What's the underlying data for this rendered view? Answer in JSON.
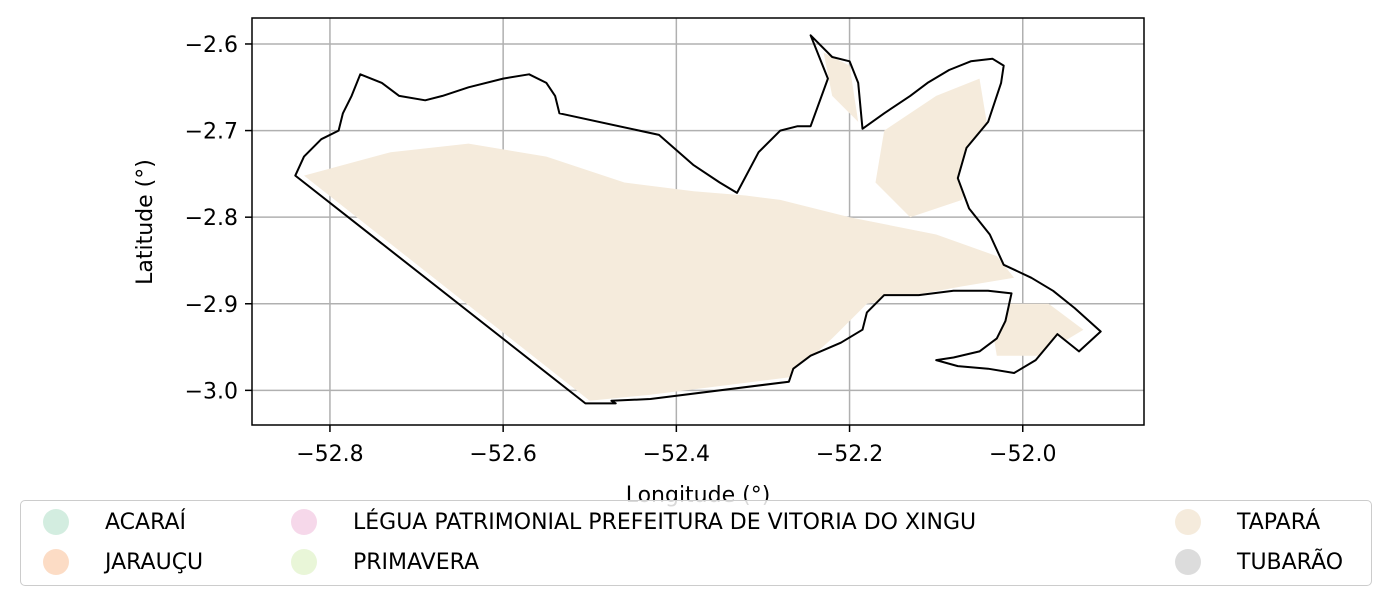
{
  "chart_data": {
    "type": "choropleth-map",
    "xlabel": "Longitude (°)",
    "ylabel": "Latitude (°)",
    "xlim": [
      -52.89,
      -51.86
    ],
    "ylim": [
      -3.04,
      -2.57
    ],
    "x_ticks": [
      -52.8,
      -52.6,
      -52.4,
      -52.2,
      -52.0
    ],
    "x_tick_labels": [
      "−52.8",
      "−52.6",
      "−52.4",
      "−52.2",
      "−52.0"
    ],
    "y_ticks": [
      -2.6,
      -2.7,
      -2.8,
      -2.9,
      -3.0
    ],
    "y_tick_labels": [
      "−2.6",
      "−2.7",
      "−2.8",
      "−2.9",
      "−3.0"
    ],
    "grid": true,
    "legend_position": "bottom",
    "colors": {
      "ACARAÍ": "#d3ede0",
      "JARAUÇU": "#fcdcc5",
      "LÉGUA PATRIMONIAL PREFEITURA DE VITORIA DO XINGU": "#f6d8ea",
      "PRIMAVERA": "#e9f6d8",
      "TAPARÁ": "#f5ebdc",
      "TUBARÃO": "#dcdcdc"
    },
    "legend": [
      {
        "label": "ACARAÍ",
        "color": "#d3ede0"
      },
      {
        "label": "JARAUÇU",
        "color": "#fcdcc5"
      },
      {
        "label": "LÉGUA PATRIMONIAL PREFEITURA DE VITORIA DO XINGU",
        "color": "#f6d8ea"
      },
      {
        "label": "PRIMAVERA",
        "color": "#e9f6d8"
      },
      {
        "label": "TAPARÁ",
        "color": "#f5ebdc"
      },
      {
        "label": "TUBARÃO",
        "color": "#dcdcdc"
      }
    ],
    "boundary": [
      [
        -52.84,
        -2.752
      ],
      [
        -52.83,
        -2.73
      ],
      [
        -52.81,
        -2.71
      ],
      [
        -52.79,
        -2.7
      ],
      [
        -52.785,
        -2.68
      ],
      [
        -52.775,
        -2.66
      ],
      [
        -52.765,
        -2.635
      ],
      [
        -52.74,
        -2.645
      ],
      [
        -52.72,
        -2.66
      ],
      [
        -52.69,
        -2.665
      ],
      [
        -52.67,
        -2.66
      ],
      [
        -52.64,
        -2.65
      ],
      [
        -52.6,
        -2.64
      ],
      [
        -52.57,
        -2.635
      ],
      [
        -52.55,
        -2.645
      ],
      [
        -52.54,
        -2.66
      ],
      [
        -52.535,
        -2.68
      ],
      [
        -52.42,
        -2.705
      ],
      [
        -52.38,
        -2.74
      ],
      [
        -52.35,
        -2.76
      ],
      [
        -52.33,
        -2.772
      ],
      [
        -52.305,
        -2.725
      ],
      [
        -52.28,
        -2.7
      ],
      [
        -52.26,
        -2.695
      ],
      [
        -52.245,
        -2.695
      ],
      [
        -52.225,
        -2.64
      ],
      [
        -52.245,
        -2.59
      ],
      [
        -52.22,
        -2.615
      ],
      [
        -52.2,
        -2.62
      ],
      [
        -52.19,
        -2.645
      ],
      [
        -52.185,
        -2.698
      ],
      [
        -52.16,
        -2.68
      ],
      [
        -52.13,
        -2.66
      ],
      [
        -52.11,
        -2.645
      ],
      [
        -52.085,
        -2.63
      ],
      [
        -52.06,
        -2.62
      ],
      [
        -52.035,
        -2.617
      ],
      [
        -52.022,
        -2.625
      ],
      [
        -52.025,
        -2.645
      ],
      [
        -52.04,
        -2.69
      ],
      [
        -52.065,
        -2.72
      ],
      [
        -52.075,
        -2.755
      ],
      [
        -52.062,
        -2.79
      ],
      [
        -52.038,
        -2.82
      ],
      [
        -52.022,
        -2.855
      ],
      [
        -51.99,
        -2.87
      ],
      [
        -51.965,
        -2.885
      ],
      [
        -51.94,
        -2.905
      ],
      [
        -51.91,
        -2.932
      ],
      [
        -51.935,
        -2.955
      ],
      [
        -51.96,
        -2.935
      ],
      [
        -51.985,
        -2.965
      ],
      [
        -52.01,
        -2.98
      ],
      [
        -52.04,
        -2.975
      ],
      [
        -52.075,
        -2.972
      ],
      [
        -52.1,
        -2.965
      ],
      [
        -52.08,
        -2.962
      ],
      [
        -52.05,
        -2.955
      ],
      [
        -52.03,
        -2.94
      ],
      [
        -52.02,
        -2.92
      ],
      [
        -52.013,
        -2.888
      ],
      [
        -52.04,
        -2.885
      ],
      [
        -52.08,
        -2.885
      ],
      [
        -52.12,
        -2.89
      ],
      [
        -52.16,
        -2.89
      ],
      [
        -52.18,
        -2.91
      ],
      [
        -52.185,
        -2.93
      ],
      [
        -52.21,
        -2.945
      ],
      [
        -52.245,
        -2.96
      ],
      [
        -52.265,
        -2.975
      ],
      [
        -52.27,
        -2.99
      ],
      [
        -52.43,
        -3.01
      ],
      [
        -52.475,
        -3.012
      ],
      [
        -52.47,
        -3.015
      ],
      [
        -52.505,
        -3.015
      ],
      [
        -52.84,
        -2.752
      ]
    ],
    "taparas_fill_region": [
      [
        -52.83,
        -2.752
      ],
      [
        -52.73,
        -2.725
      ],
      [
        -52.64,
        -2.715
      ],
      [
        -52.55,
        -2.73
      ],
      [
        -52.46,
        -2.76
      ],
      [
        -52.38,
        -2.77
      ],
      [
        -52.32,
        -2.775
      ],
      [
        -52.28,
        -2.78
      ],
      [
        -52.2,
        -2.8
      ],
      [
        -52.1,
        -2.82
      ],
      [
        -52.03,
        -2.845
      ],
      [
        -52.01,
        -2.87
      ],
      [
        -52.07,
        -2.88
      ],
      [
        -52.18,
        -2.9
      ],
      [
        -52.22,
        -2.94
      ],
      [
        -52.27,
        -2.985
      ],
      [
        -52.43,
        -3.005
      ],
      [
        -52.5,
        -3.012
      ],
      [
        -52.83,
        -2.752
      ]
    ]
  }
}
